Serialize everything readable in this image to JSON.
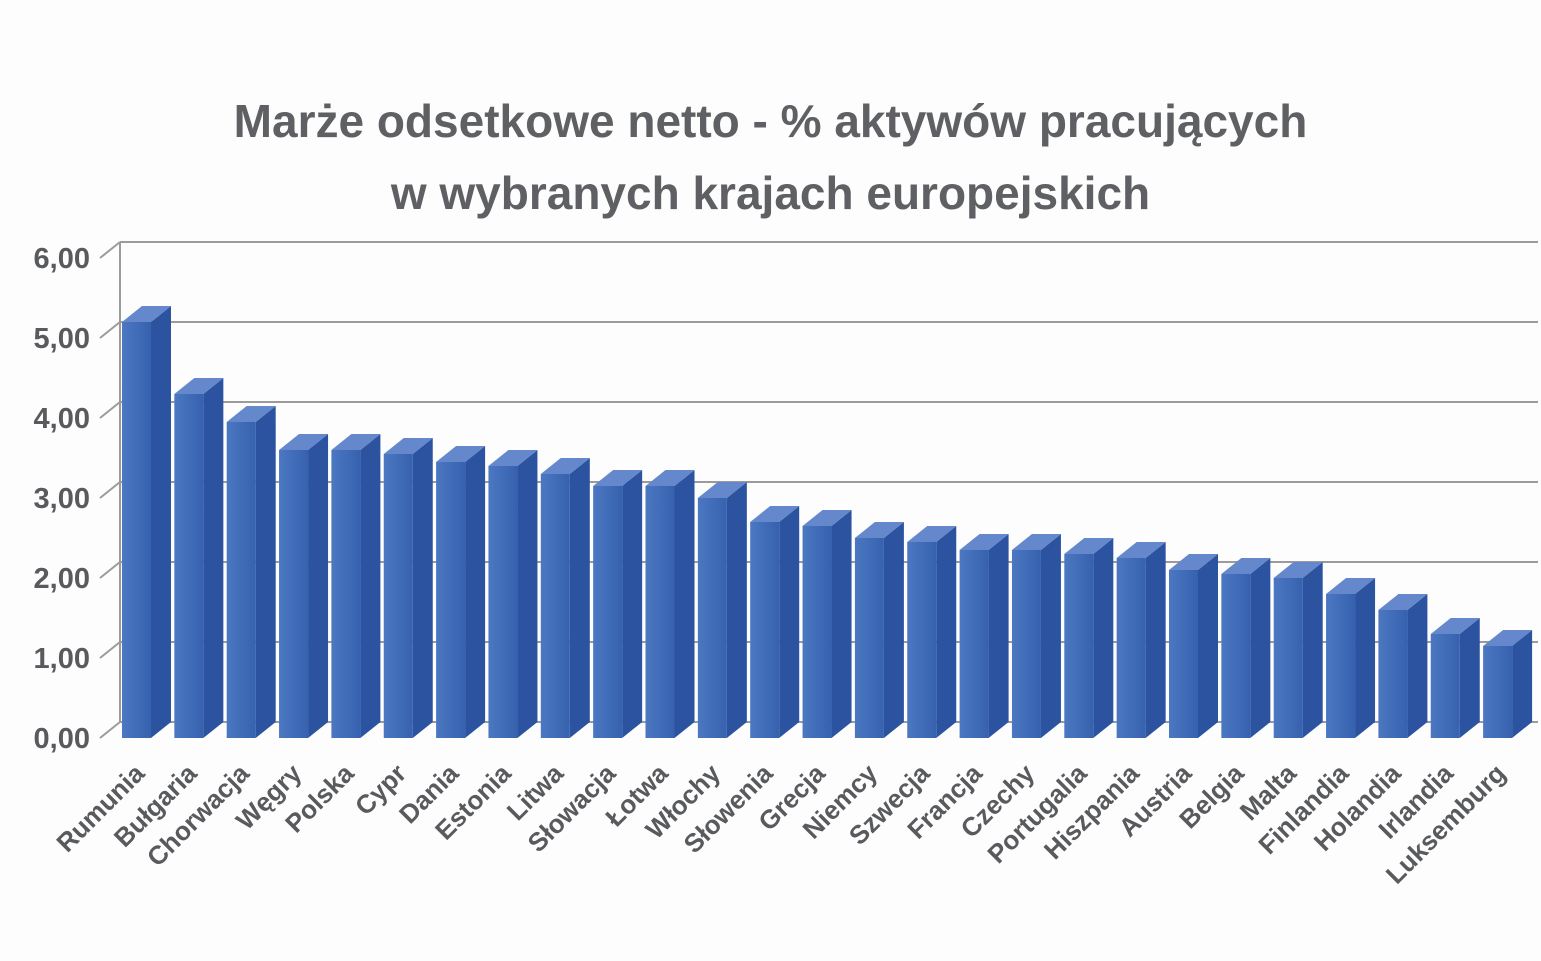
{
  "chart_data": {
    "type": "bar",
    "style": "3d-column",
    "title_line1": "Marże odsetkowe netto - % aktywów pracujących",
    "title_line2": "w wybranych krajach europejskich",
    "categories": [
      "Rumunia",
      "Bułgaria",
      "Chorwacja",
      "Węgry",
      "Polska",
      "Cypr",
      "Dania",
      "Estonia",
      "Litwa",
      "Słowacja",
      "Łotwa",
      "Włochy",
      "Słowenia",
      "Grecja",
      "Niemcy",
      "Szwecja",
      "Francja",
      "Czechy",
      "Portugalia",
      "Hiszpania",
      "Austria",
      "Belgia",
      "Malta",
      "Finlandia",
      "Holandia",
      "Irlandia",
      "Luksemburg"
    ],
    "values": [
      5.2,
      4.3,
      3.95,
      3.6,
      3.6,
      3.55,
      3.45,
      3.4,
      3.3,
      3.15,
      3.15,
      3.0,
      2.7,
      2.65,
      2.5,
      2.45,
      2.35,
      2.35,
      2.3,
      2.25,
      2.1,
      2.05,
      2.0,
      1.8,
      1.6,
      1.3,
      1.15
    ],
    "ylim": [
      0,
      6
    ],
    "ytick_labels": [
      "0,00",
      "1,00",
      "2,00",
      "3,00",
      "4,00",
      "5,00",
      "6,00"
    ],
    "xlabel": "",
    "ylabel": "",
    "grid": true,
    "legend_position": "none",
    "colors": {
      "background": "#fdfdfd",
      "title_text": "#5f6063",
      "axis_text": "#595a5d",
      "gridline": "#9b9b9b",
      "bar_front_light": "#4C78C2",
      "bar_front_dark": "#3561AE",
      "bar_side": "#2C53A0",
      "bar_top": "#6488CB"
    }
  }
}
